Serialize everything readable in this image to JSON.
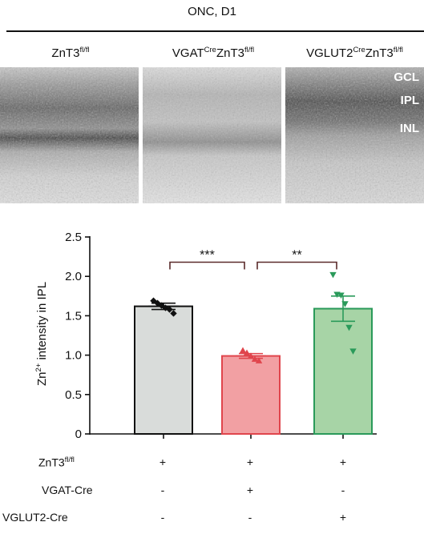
{
  "header": {
    "title": "ONC, D1"
  },
  "groups": [
    {
      "base": "ZnT3",
      "sup": "fl/fl",
      "pre": "",
      "pre_sup": ""
    },
    {
      "base": "ZnT3",
      "sup": "fl/fl",
      "pre": "VGAT",
      "pre_sup": "Cre"
    },
    {
      "base": "ZnT3",
      "sup": "fl/fl",
      "pre": "VGLUT2",
      "pre_sup": "Cre"
    }
  ],
  "layer_labels": [
    "GCL",
    "IPL",
    "INL"
  ],
  "chart_data": {
    "type": "bar",
    "ylabel_main": "Zn",
    "ylabel_sup": "2+",
    "ylabel_rest": " intensity in IPL",
    "ylim": [
      0,
      2.5
    ],
    "yticks": [
      "0",
      "0.5",
      "1.0",
      "1.5",
      "2.0",
      "2.5"
    ],
    "ytick_values": [
      0,
      0.5,
      1.0,
      1.5,
      2.0,
      2.5
    ],
    "series": [
      {
        "mean": 1.62,
        "sem": 0.04,
        "fill": "#d9dcda",
        "edge": "#111111",
        "marker": "diamond",
        "points": [
          1.69,
          1.66,
          1.63,
          1.6,
          1.58,
          1.53
        ]
      },
      {
        "mean": 0.99,
        "sem": 0.03,
        "fill": "#f2a0a3",
        "edge": "#e0454c",
        "marker": "triangle-up",
        "points": [
          1.06,
          1.03,
          0.99,
          0.95,
          0.93
        ]
      },
      {
        "mean": 1.59,
        "sem": 0.16,
        "fill": "#a7d4a6",
        "edge": "#2a9a5a",
        "marker": "triangle-down",
        "points": [
          2.02,
          1.77,
          1.76,
          1.65,
          1.35,
          1.05
        ]
      }
    ],
    "significance": [
      {
        "from": 0,
        "to": 1,
        "label": "***"
      },
      {
        "from": 1,
        "to": 2,
        "label": "**"
      }
    ]
  },
  "condition_table": {
    "rows": [
      {
        "label": "ZnT3",
        "label_sup": "fl/fl",
        "values": [
          "+",
          "+",
          "+"
        ]
      },
      {
        "label": "VGAT-Cre",
        "label_sup": "",
        "values": [
          "-",
          "+",
          "-"
        ]
      },
      {
        "label": "VGLUT2-Cre",
        "label_sup": "",
        "values": [
          "-",
          "-",
          "+"
        ]
      }
    ]
  }
}
